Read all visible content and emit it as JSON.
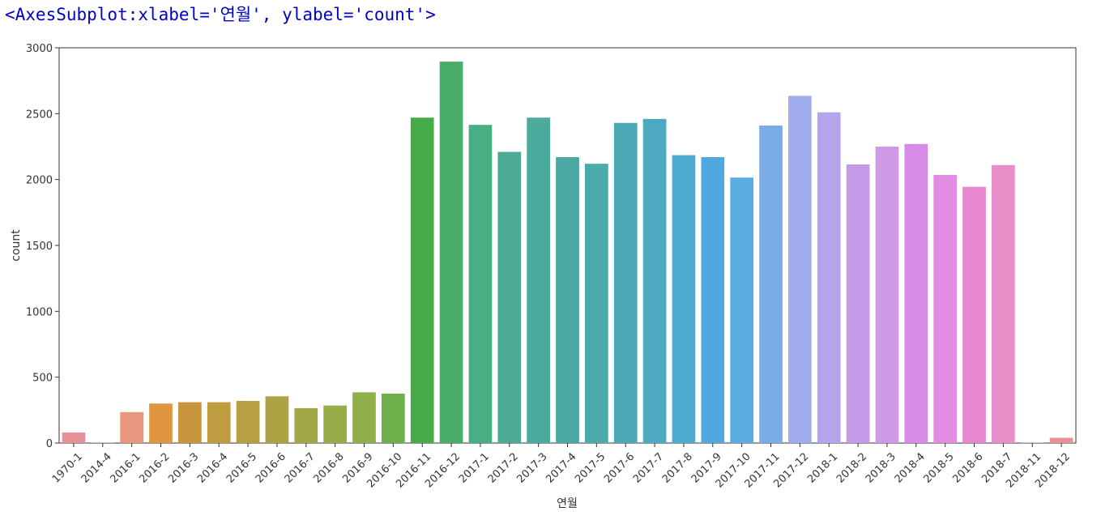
{
  "repr_text": "<AxesSubplot:xlabel='연월', ylabel='count'>",
  "chart_data": {
    "type": "bar",
    "xlabel": "연월",
    "ylabel": "count",
    "ylim": [
      0,
      3000
    ],
    "yticks": [
      0,
      500,
      1000,
      1500,
      2000,
      2500,
      3000
    ],
    "grid": false,
    "categories": [
      "1970-1",
      "2014-4",
      "2016-1",
      "2016-2",
      "2016-3",
      "2016-4",
      "2016-5",
      "2016-6",
      "2016-7",
      "2016-8",
      "2016-9",
      "2016-10",
      "2016-11",
      "2016-12",
      "2017-1",
      "2017-2",
      "2017-3",
      "2017-4",
      "2017-5",
      "2017-6",
      "2017-7",
      "2017-8",
      "2017-9",
      "2017-10",
      "2017-11",
      "2017-12",
      "2018-1",
      "2018-2",
      "2018-3",
      "2018-4",
      "2018-5",
      "2018-6",
      "2018-7",
      "2018-11",
      "2018-12"
    ],
    "values": [
      80,
      2,
      235,
      300,
      310,
      310,
      320,
      355,
      265,
      285,
      385,
      375,
      2470,
      2895,
      2415,
      2210,
      2470,
      2170,
      2120,
      2430,
      2460,
      2185,
      2170,
      2015,
      2410,
      2635,
      2510,
      2115,
      2250,
      2270,
      2035,
      1945,
      2110,
      2,
      40
    ],
    "colors": [
      "#e8909a",
      "#e8928b",
      "#e8967e",
      "#e09540",
      "#c9963f",
      "#c09c40",
      "#b6a042",
      "#aca444",
      "#a2a846",
      "#98ac48",
      "#8eaf4a",
      "#6fb04c",
      "#47ab4a",
      "#49ae6a",
      "#4aae84",
      "#4aaa93",
      "#4aaa9b",
      "#4aaaa3",
      "#4baaab",
      "#4ca9b5",
      "#4ca9bf",
      "#4eaad0",
      "#50a8dd",
      "#5aaee3",
      "#7cace6",
      "#a0aceb",
      "#b4a4ea",
      "#c49ae9",
      "#cf99e7",
      "#d68be7",
      "#e48be2",
      "#e687d0",
      "#e88ec6",
      "#e894b4",
      "#e8909a"
    ]
  }
}
